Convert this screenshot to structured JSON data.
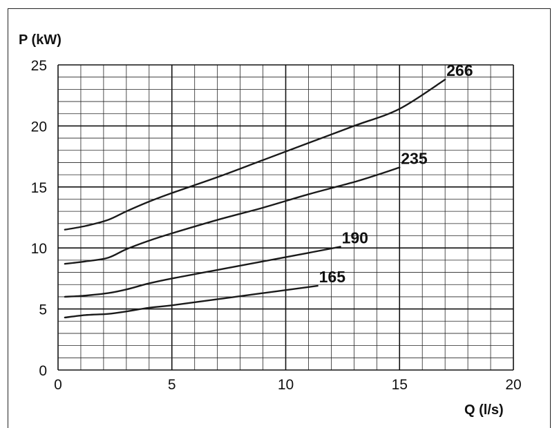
{
  "chart_data": {
    "type": "line",
    "ylabel": "P (kW)",
    "xlabel": "Q (l/s)",
    "xlim": [
      0,
      20
    ],
    "ylim": [
      0,
      25
    ],
    "x_ticks": [
      "0",
      "5",
      "10",
      "15",
      "20"
    ],
    "y_ticks": [
      "0",
      "5",
      "10",
      "15",
      "20",
      "25"
    ],
    "grid": true,
    "series": [
      {
        "name": "266",
        "x": [
          0.3,
          1.2,
          2.2,
          3.0,
          4.0,
          5.0,
          7.0,
          9.0,
          11.0,
          13.0,
          15.0,
          17.0
        ],
        "y": [
          11.5,
          11.8,
          12.3,
          13.0,
          13.8,
          14.5,
          15.8,
          17.2,
          18.6,
          20.0,
          21.4,
          23.8
        ]
      },
      {
        "name": "235",
        "x": [
          0.3,
          1.2,
          2.2,
          3.0,
          4.0,
          5.0,
          7.0,
          9.0,
          11.0,
          13.0,
          14.2,
          15.0
        ],
        "y": [
          8.7,
          8.9,
          9.2,
          9.9,
          10.6,
          11.2,
          12.3,
          13.3,
          14.4,
          15.4,
          16.1,
          16.6
        ]
      },
      {
        "name": "190",
        "x": [
          0.3,
          1.2,
          2.2,
          3.0,
          4.0,
          5.0,
          7.0,
          9.0,
          11.0,
          12.4
        ],
        "y": [
          6.0,
          6.1,
          6.3,
          6.6,
          7.1,
          7.5,
          8.2,
          8.9,
          9.6,
          10.1
        ]
      },
      {
        "name": "165",
        "x": [
          0.3,
          1.2,
          2.2,
          3.0,
          4.0,
          5.0,
          7.0,
          9.0,
          11.0,
          11.4
        ],
        "y": [
          4.3,
          4.5,
          4.6,
          4.8,
          5.1,
          5.3,
          5.8,
          6.3,
          6.8,
          6.9
        ]
      }
    ]
  }
}
